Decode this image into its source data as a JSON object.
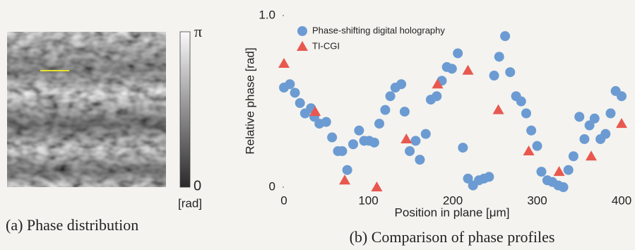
{
  "panel_a": {
    "caption": "(a) Phase distribution",
    "colorbar_top": "π",
    "colorbar_bottom": "0",
    "colorbar_unit": "[rad]"
  },
  "chart_data": {
    "type": "scatter",
    "caption": "(b) Comparison of phase profiles",
    "xlabel": "Position in plane [μm]",
    "ylabel": "Relative phase [rad]",
    "xlim": [
      0,
      400
    ],
    "xticks": [
      0,
      100,
      200,
      300,
      400
    ],
    "ylim": [
      0,
      1
    ],
    "yticks": [
      0,
      {
        "value": 1,
        "label": "1.0"
      }
    ],
    "legend": "upper left",
    "series": [
      {
        "name": "Phase-shifting digital holography",
        "color": "#6b9bd2",
        "marker": "circle",
        "x": [
          0,
          7,
          13,
          19,
          25,
          32,
          36,
          42,
          50,
          57,
          64,
          69,
          75,
          82,
          89,
          95,
          101,
          107,
          113,
          120,
          126,
          132,
          139,
          143,
          149,
          156,
          161,
          168,
          174,
          181,
          187,
          193,
          199,
          206,
          212,
          218,
          224,
          231,
          237,
          243,
          249,
          255,
          262,
          268,
          275,
          281,
          287,
          293,
          300,
          305,
          312,
          318,
          325,
          331,
          337,
          343,
          350,
          356,
          362,
          368,
          375,
          381,
          387,
          393,
          400
        ],
        "values": [
          0.58,
          0.6,
          0.55,
          0.49,
          0.43,
          0.46,
          0.41,
          0.37,
          0.38,
          0.29,
          0.21,
          0.21,
          0.1,
          0.25,
          0.33,
          0.27,
          0.27,
          0.26,
          0.37,
          0.45,
          0.53,
          0.58,
          0.6,
          0.44,
          0.21,
          0.27,
          0.16,
          0.31,
          0.51,
          0.53,
          0.62,
          0.7,
          0.69,
          0.78,
          0.23,
          0.05,
          0.01,
          0.04,
          0.05,
          0.06,
          0.65,
          0.76,
          0.88,
          0.67,
          0.53,
          0.5,
          0.43,
          0.33,
          0.24,
          0.09,
          0.04,
          0.03,
          0.01,
          0,
          0.1,
          0.18,
          0.41,
          0.28,
          0.36,
          0.4,
          0.28,
          0.31,
          0.43,
          0.56,
          0.53
        ]
      },
      {
        "name": "TI-CGI",
        "color": "#e8584f",
        "marker": "triangle",
        "x": [
          0,
          37,
          72,
          110,
          145,
          182,
          218,
          254,
          290,
          326,
          364,
          400
        ],
        "values": [
          0.72,
          0.44,
          0.04,
          0,
          0.28,
          0.6,
          0.68,
          0.45,
          0.21,
          0.09,
          0.18,
          0.37
        ]
      }
    ]
  }
}
